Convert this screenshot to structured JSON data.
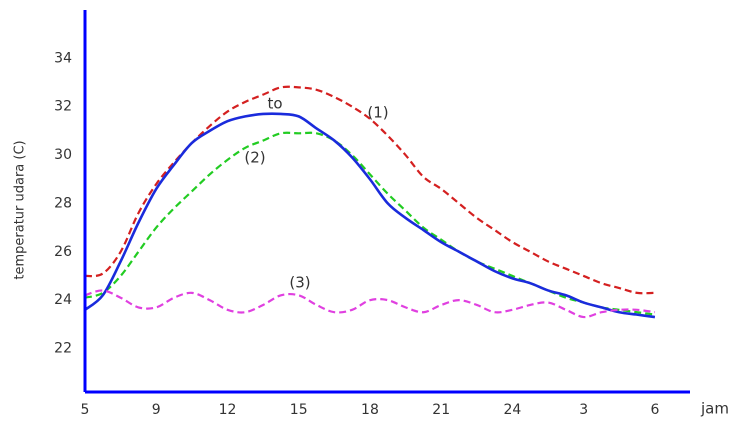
{
  "chart_data": {
    "type": "line",
    "y_label": "temperatur udara (C)",
    "x_label": "jam",
    "categories": [
      "5",
      null,
      null,
      null,
      "9",
      null,
      null,
      null,
      "12",
      null,
      null,
      null,
      "15",
      null,
      null,
      null,
      "18",
      null,
      null,
      null,
      "21",
      null,
      null,
      null,
      "24",
      null,
      null,
      null,
      "3",
      null,
      null,
      null,
      "6"
    ],
    "series": [
      {
        "name": "(1)",
        "color": "#d42020",
        "dashed": true,
        "values": [
          25.0,
          25.1,
          26.0,
          27.6,
          28.8,
          29.7,
          30.5,
          31.2,
          31.8,
          32.2,
          32.5,
          32.8,
          32.8,
          32.7,
          32.4,
          32.0,
          31.5,
          30.8,
          30.0,
          29.1,
          28.6,
          28.0,
          27.4,
          26.9,
          26.4,
          26.0,
          25.6,
          25.3,
          25.0,
          24.7,
          24.5,
          24.3,
          24.3
        ]
      },
      {
        "name": "(2)",
        "color": "#22cc22",
        "dashed": true,
        "values": [
          24.1,
          24.3,
          25.0,
          26.0,
          27.0,
          27.8,
          28.5,
          29.2,
          29.8,
          30.3,
          30.6,
          30.9,
          30.9,
          30.9,
          30.6,
          30.0,
          29.2,
          28.4,
          27.7,
          27.0,
          26.5,
          26.0,
          25.6,
          25.3,
          25.0,
          24.7,
          24.4,
          24.1,
          23.9,
          23.7,
          23.6,
          23.5,
          23.4
        ]
      },
      {
        "name": "to",
        "color": "#1a2bdc",
        "dashed": false,
        "values": [
          23.6,
          24.2,
          25.6,
          27.2,
          28.6,
          29.6,
          30.5,
          31.0,
          31.4,
          31.6,
          31.7,
          31.7,
          31.6,
          31.1,
          30.6,
          29.9,
          29.0,
          28.0,
          27.4,
          26.9,
          26.4,
          26.0,
          25.6,
          25.2,
          24.9,
          24.7,
          24.4,
          24.2,
          23.9,
          23.7,
          23.5,
          23.4,
          23.3
        ]
      },
      {
        "name": "(3)",
        "color": "#e040e0",
        "dashed": true,
        "values": [
          24.2,
          24.4,
          24.1,
          23.7,
          23.7,
          24.1,
          24.3,
          24.0,
          23.6,
          23.5,
          23.8,
          24.2,
          24.2,
          23.8,
          23.5,
          23.6,
          24.0,
          24.0,
          23.7,
          23.5,
          23.8,
          24.0,
          23.8,
          23.5,
          23.6,
          23.8,
          23.9,
          23.6,
          23.3,
          23.5,
          23.6,
          23.6,
          23.5
        ]
      }
    ],
    "ylim": [
      20.2,
      36
    ],
    "yticks": [
      22,
      24,
      26,
      28,
      30,
      32,
      34
    ],
    "grid": false
  }
}
